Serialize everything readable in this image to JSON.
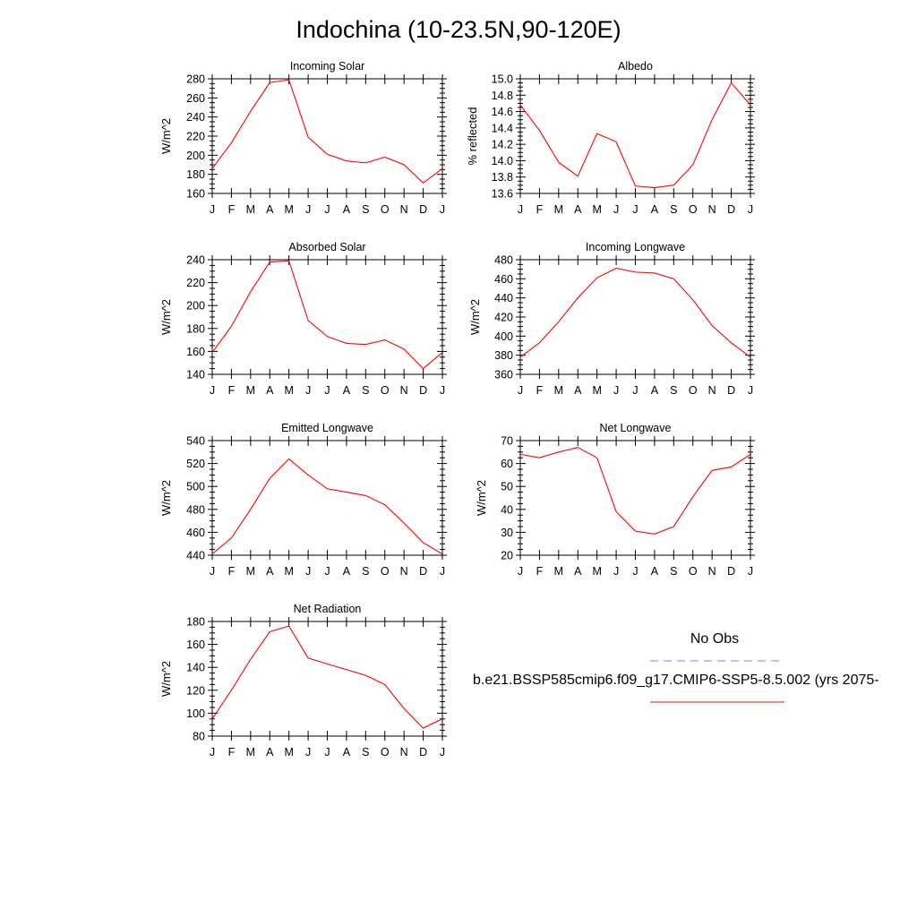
{
  "page": {
    "title": "Indochina (10-23.5N,90-120E)"
  },
  "legend": {
    "obs_label": "No Obs",
    "obs_color": "#8080ff",
    "model_label": "b.e21.BSSP585cmip6.f09_g17.CMIP6-SSP5-8.5.002 (yrs 2075-",
    "model_color": "#ff0000"
  },
  "chart_data": [
    {
      "type": "line",
      "title": "Incoming Solar",
      "xlabel": "",
      "ylabel": "W/m^2",
      "categories": [
        "J",
        "F",
        "M",
        "A",
        "M",
        "J",
        "J",
        "A",
        "S",
        "O",
        "N",
        "D",
        "J"
      ],
      "ylim": [
        160,
        280
      ],
      "yticks": [
        "160",
        "180",
        "200",
        "220",
        "240",
        "260",
        "280"
      ],
      "series": [
        {
          "color": "#ff0000",
          "values": [
            186,
            213,
            246,
            276,
            279,
            219,
            201,
            194,
            192,
            198,
            190,
            171,
            186
          ]
        }
      ]
    },
    {
      "type": "line",
      "title": "Albedo",
      "xlabel": "",
      "ylabel": "% reflected",
      "categories": [
        "J",
        "F",
        "M",
        "A",
        "M",
        "J",
        "J",
        "A",
        "S",
        "O",
        "N",
        "D",
        "J"
      ],
      "ylim": [
        13.6,
        15.0
      ],
      "yticks": [
        "13.6",
        "13.8",
        "14.0",
        "14.2",
        "14.4",
        "14.6",
        "14.8",
        "15.0"
      ],
      "series": [
        {
          "color": "#ff0000",
          "values": [
            14.68,
            14.37,
            13.98,
            13.81,
            14.33,
            14.23,
            13.69,
            13.67,
            13.7,
            13.95,
            14.5,
            14.95,
            14.68
          ]
        }
      ]
    },
    {
      "type": "line",
      "title": "Absorbed Solar",
      "xlabel": "",
      "ylabel": "W/m^2",
      "categories": [
        "J",
        "F",
        "M",
        "A",
        "M",
        "J",
        "J",
        "A",
        "S",
        "O",
        "N",
        "D",
        "J"
      ],
      "ylim": [
        140,
        240
      ],
      "yticks": [
        "140",
        "160",
        "180",
        "200",
        "220",
        "240"
      ],
      "series": [
        {
          "color": "#ff0000",
          "values": [
            159,
            182,
            212,
            238,
            239,
            187,
            173,
            167,
            166,
            170,
            162,
            145,
            159
          ]
        }
      ]
    },
    {
      "type": "line",
      "title": "Incoming Longwave",
      "xlabel": "",
      "ylabel": "W/m^2",
      "categories": [
        "J",
        "F",
        "M",
        "A",
        "M",
        "J",
        "J",
        "A",
        "S",
        "O",
        "N",
        "D",
        "J"
      ],
      "ylim": [
        360,
        480
      ],
      "yticks": [
        "360",
        "380",
        "400",
        "420",
        "440",
        "460",
        "480"
      ],
      "series": [
        {
          "color": "#ff0000",
          "values": [
            378,
            393,
            415,
            440,
            461,
            471,
            467,
            466,
            460,
            438,
            411,
            393,
            378
          ]
        }
      ]
    },
    {
      "type": "line",
      "title": "Emitted Longwave",
      "xlabel": "",
      "ylabel": "W/m^2",
      "categories": [
        "J",
        "F",
        "M",
        "A",
        "M",
        "J",
        "J",
        "A",
        "S",
        "O",
        "N",
        "D",
        "J"
      ],
      "ylim": [
        440,
        540
      ],
      "yticks": [
        "440",
        "460",
        "480",
        "500",
        "520",
        "540"
      ],
      "series": [
        {
          "color": "#ff0000",
          "values": [
            441,
            455,
            480,
            507,
            524,
            510,
            498,
            495,
            492,
            484,
            468,
            451,
            441
          ]
        }
      ]
    },
    {
      "type": "line",
      "title": "Net Longwave",
      "xlabel": "",
      "ylabel": "W/m^2",
      "categories": [
        "J",
        "F",
        "M",
        "A",
        "M",
        "J",
        "J",
        "A",
        "S",
        "O",
        "N",
        "D",
        "J"
      ],
      "ylim": [
        20,
        70
      ],
      "yticks": [
        "20",
        "30",
        "40",
        "50",
        "60",
        "70"
      ],
      "series": [
        {
          "color": "#ff0000",
          "values": [
            64,
            62.5,
            65,
            67,
            62.5,
            39,
            30.5,
            29.2,
            32.5,
            45.5,
            57,
            58.5,
            64
          ]
        }
      ]
    },
    {
      "type": "line",
      "title": "Net Radiation",
      "xlabel": "",
      "ylabel": "W/m^2",
      "categories": [
        "J",
        "F",
        "M",
        "A",
        "M",
        "J",
        "J",
        "A",
        "S",
        "O",
        "N",
        "D",
        "J"
      ],
      "ylim": [
        80,
        180
      ],
      "yticks": [
        "80",
        "100",
        "120",
        "140",
        "160",
        "180"
      ],
      "series": [
        {
          "color": "#ff0000",
          "values": [
            95,
            120,
            147,
            171,
            176,
            148,
            143,
            138,
            133,
            125,
            104,
            87,
            95
          ]
        }
      ]
    }
  ]
}
